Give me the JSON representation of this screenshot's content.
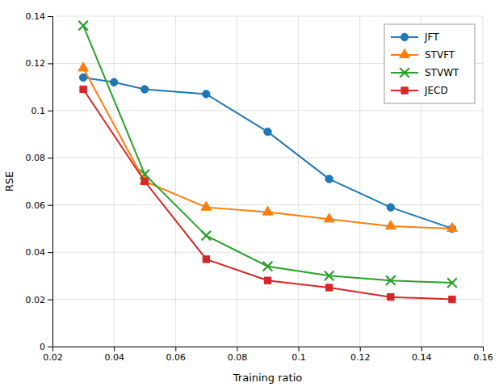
{
  "chart_data": {
    "type": "line",
    "xlabel": "Training ratio",
    "ylabel": "RSE",
    "xlim": [
      0.02,
      0.16
    ],
    "ylim": [
      0,
      0.14
    ],
    "xticks": [
      0.02,
      0.04,
      0.06,
      0.08,
      0.1,
      0.12,
      0.14,
      0.16
    ],
    "yticks": [
      0,
      0.02,
      0.04,
      0.06,
      0.08,
      0.1,
      0.12,
      0.14
    ],
    "grid": true,
    "legend": "top-right",
    "series": [
      {
        "name": "JFT",
        "marker": "circle",
        "x": [
          0.03,
          0.04,
          0.05,
          0.07,
          0.09,
          0.11,
          0.13,
          0.15
        ],
        "values": [
          0.114,
          0.112,
          0.109,
          0.107,
          0.091,
          0.071,
          0.059,
          0.05
        ]
      },
      {
        "name": "STVFT",
        "marker": "triangle",
        "x": [
          0.03,
          0.05,
          0.07,
          0.09,
          0.11,
          0.13,
          0.15
        ],
        "values": [
          0.118,
          0.07,
          0.059,
          0.057,
          0.054,
          0.051,
          0.05
        ]
      },
      {
        "name": "STVWT",
        "marker": "x",
        "x": [
          0.03,
          0.05,
          0.07,
          0.09,
          0.11,
          0.13,
          0.15
        ],
        "values": [
          0.136,
          0.073,
          0.047,
          0.034,
          0.03,
          0.028,
          0.027
        ]
      },
      {
        "name": "JECD",
        "marker": "square",
        "x": [
          0.03,
          0.05,
          0.07,
          0.09,
          0.11,
          0.13,
          0.15
        ],
        "values": [
          0.109,
          0.07,
          0.037,
          0.028,
          0.025,
          0.021,
          0.02
        ]
      }
    ]
  }
}
